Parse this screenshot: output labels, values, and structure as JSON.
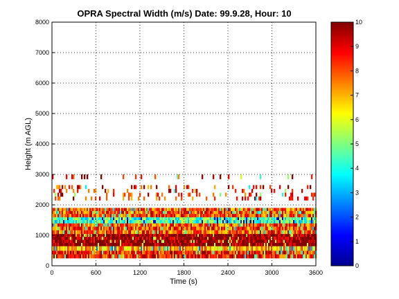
{
  "chart_data": {
    "type": "heatmap",
    "title": "OPRA Spectral Width (m/s)  Date: 99.9.28, Hour: 10",
    "xlabel": "Time (s)",
    "ylabel": "Height (m AGL)",
    "xlim": [
      0,
      3600
    ],
    "ylim": [
      0,
      8000
    ],
    "x_ticks": [
      "0",
      "600",
      "1200",
      "1800",
      "2400",
      "3000",
      "3600"
    ],
    "y_ticks": [
      "0",
      "1000",
      "2000",
      "3000",
      "4000",
      "5000",
      "6000",
      "7000",
      "8000"
    ],
    "grid": true,
    "grid_style": "dotted",
    "colormap": "jet",
    "colorbar": {
      "range": [
        0,
        10
      ],
      "ticks": [
        "0",
        "1",
        "2",
        "3",
        "4",
        "5",
        "6",
        "7",
        "8",
        "9",
        "10"
      ]
    },
    "height_bands_m": [
      {
        "from": 250,
        "to": 500,
        "dominant_value": 8.5
      },
      {
        "from": 500,
        "to": 650,
        "dominant_value": 7.0
      },
      {
        "from": 650,
        "to": 1050,
        "dominant_value": 10
      },
      {
        "from": 1050,
        "to": 1400,
        "dominant_value": 8.0
      },
      {
        "from": 1400,
        "to": 1600,
        "dominant_value": 4.5
      },
      {
        "from": 1600,
        "to": 1900,
        "dominant_value": 8.0
      },
      {
        "from": 2150,
        "to": 2650,
        "dominant_value": 8.5,
        "sparse": true
      },
      {
        "from": 2850,
        "to": 3000,
        "dominant_value": 9.0,
        "sparse": true
      }
    ]
  }
}
